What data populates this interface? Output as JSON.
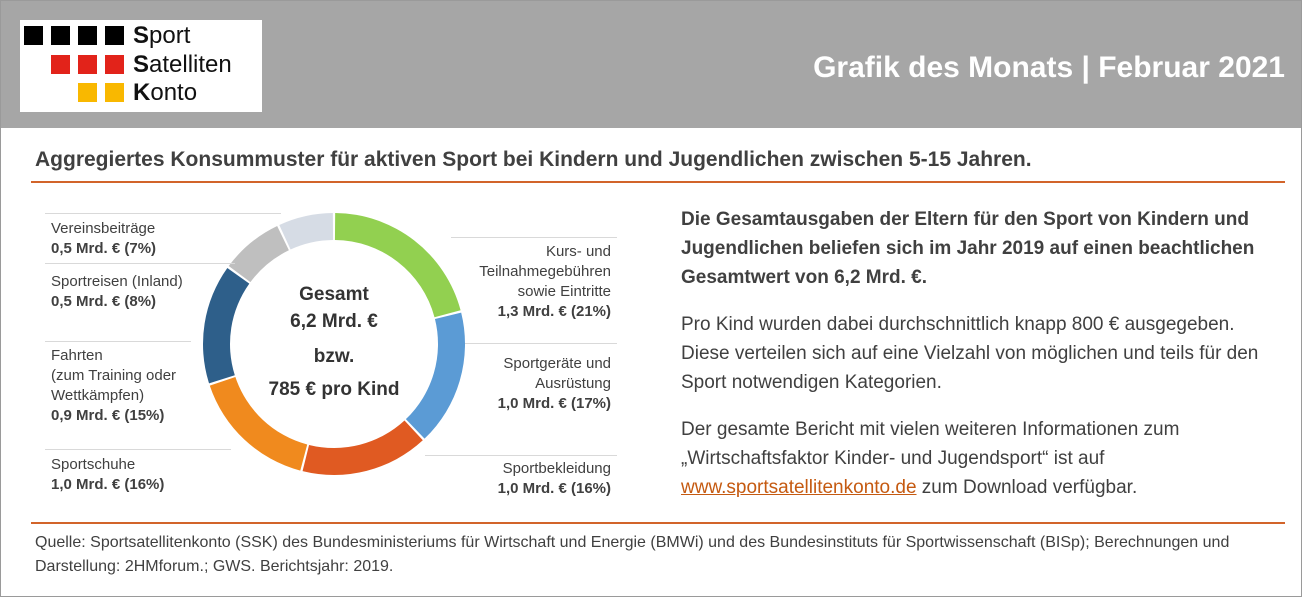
{
  "header": {
    "logo": {
      "words": [
        {
          "initial": "S",
          "rest": "port"
        },
        {
          "initial": "S",
          "rest": "atelliten"
        },
        {
          "initial": "K",
          "rest": "onto"
        }
      ],
      "colors": [
        "#000000",
        "#e2231a",
        "#f9b800"
      ]
    },
    "title": "Grafik des Monats | Februar 2021"
  },
  "subtitle": "Aggregiertes Konsummuster für aktiven Sport bei Kindern und Jugendlichen zwischen 5-15 Jahren.",
  "chart_data": {
    "type": "pie",
    "title": "",
    "center": {
      "line1": "Gesamt",
      "line2": "6,2 Mrd. €",
      "line3": "bzw.",
      "line4": "785 € pro Kind"
    },
    "slices": [
      {
        "label_lines": [
          "Kurs- und",
          "Teilnahmegebühren",
          "sowie Eintritte"
        ],
        "value_label": "1,3 Mrd. € (21%)",
        "value": 21,
        "color": "#92d050"
      },
      {
        "label_lines": [
          "Sportgeräte und",
          "Ausrüstung"
        ],
        "value_label": "1,0 Mrd. € (17%)",
        "value": 17,
        "color": "#5b9bd5"
      },
      {
        "label_lines": [
          "Sportbekleidung"
        ],
        "value_label": "1,0 Mrd. € (16%)",
        "value": 16,
        "color": "#e05a22"
      },
      {
        "label_lines": [
          "Sportschuhe"
        ],
        "value_label": "1,0 Mrd. € (16%)",
        "value": 16,
        "color": "#f08a1e"
      },
      {
        "label_lines": [
          "Fahrten",
          "(zum Training oder",
          "Wettkämpfen)"
        ],
        "value_label": "0,9 Mrd. € (15%)",
        "value": 15,
        "color": "#2e5f8a"
      },
      {
        "label_lines": [
          "Sportreisen (Inland)"
        ],
        "value_label": "0,5 Mrd. € (8%)",
        "value": 8,
        "color": "#bfbfbf"
      },
      {
        "label_lines": [
          "Vereinsbeiträge"
        ],
        "value_label": "0,5 Mrd. € (7%)",
        "value": 7,
        "color": "#d6dce5"
      }
    ]
  },
  "text": {
    "lead": "Die Gesamtausgaben der Eltern für den Sport von Kindern und Jugendlichen beliefen sich im Jahr 2019 auf einen beachtlichen Gesamtwert von 6,2 Mrd. €.",
    "para1": "Pro Kind wurden dabei durchschnittlich knapp 800 € ausgegeben. Diese verteilen sich auf eine Vielzahl von möglichen und teils für den Sport notwendigen Kategorien.",
    "para2_before": "Der gesamte Bericht mit vielen weiteren Informationen zum „Wirtschaftsfaktor Kinder- und Jugendsport“ ist auf",
    "link": "www.sportsatellitenkonto.de",
    "para2_after": " zum Download verfügbar."
  },
  "source": "Quelle: Sportsatellitenkonto (SSK) des Bundesministeriums für Wirtschaft und Energie (BMWi) und des Bundesinstituts für Sportwissenschaft (BISp); Berechnungen und Darstellung: 2HMforum.; GWS. Berichtsjahr: 2019."
}
